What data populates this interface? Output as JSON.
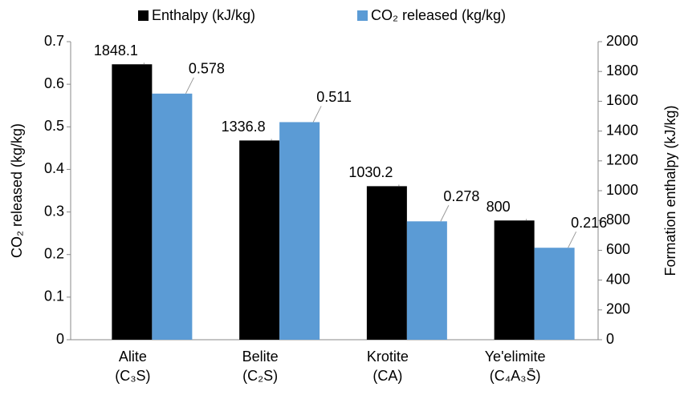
{
  "chart_data": {
    "type": "bar",
    "categories": [
      [
        "Alite",
        "(C₃S)"
      ],
      [
        "Belite",
        "(C₂S)"
      ],
      [
        "Krotite",
        "(CA)"
      ],
      [
        "Ye'elimite",
        "(C₄A₃S̄)"
      ]
    ],
    "series": [
      {
        "name": "Enthalpy (kJ/kg)",
        "color": "#000000",
        "axis": "y2",
        "values": [
          1848.1,
          1336.8,
          1030.2,
          800
        ]
      },
      {
        "name": "CO₂ released (kg/kg)",
        "color": "#5b9bd5",
        "values": [
          0.578,
          0.511,
          0.278,
          0.216
        ]
      }
    ],
    "ylabel": "CO₂ released (kg/kg)",
    "y2label": "Formation enthalpy (kJ/kg)",
    "ylim": [
      0,
      0.7
    ],
    "yticks": [
      0,
      0.1,
      0.2,
      0.3,
      0.4,
      0.5,
      0.6,
      0.7
    ],
    "y2lim": [
      0,
      2000
    ],
    "y2ticks": [
      0,
      200,
      400,
      600,
      800,
      1000,
      1200,
      1400,
      1600,
      1800,
      2000
    ],
    "legend": "top",
    "grid": false
  }
}
